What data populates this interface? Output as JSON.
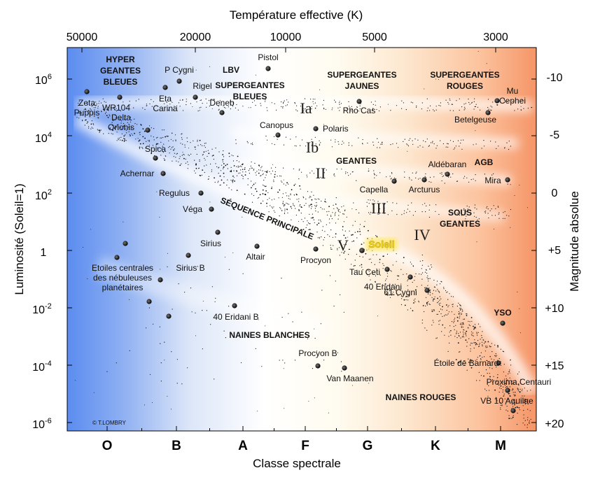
{
  "chart_data": {
    "type": "scatter",
    "top_title": "Température effective (K)",
    "xlabel": "Classe spectrale",
    "ylabel": "Luminosité (Soleil=1)",
    "ylabel_right": "Magnitude absolue",
    "temperature_ticks": [
      "50000",
      "20000",
      "10000",
      "5000",
      "3000"
    ],
    "spectral_classes": [
      "O",
      "B",
      "A",
      "F",
      "G",
      "K",
      "M"
    ],
    "luminosity_ticks": [
      "10^6",
      "10^4",
      "10^2",
      "1",
      "10^-2",
      "10^-4",
      "10^-6"
    ],
    "luminosity_range_log10": [
      -6.3,
      7.1
    ],
    "magnitude_ticks": [
      "-10",
      "-5",
      "0",
      "+5",
      "+10",
      "+15",
      "+20"
    ],
    "copyright": "© T.LOMBRY",
    "stars": [
      {
        "name": "Pistol",
        "cls": "A7",
        "logL": 6.4
      },
      {
        "name": "P Cygni",
        "cls": "B2",
        "logL": 5.9
      },
      {
        "name": "Rigel",
        "cls": "B8",
        "logL": 5.4
      },
      {
        "name": "Eta Carina",
        "cls": "B0.5",
        "logL": 5.7
      },
      {
        "name": "WR104",
        "cls": "O6",
        "logL": 5.4
      },
      {
        "name": "Zeta Puppis",
        "cls": "O0",
        "logL": 5.6
      },
      {
        "name": "Deneb",
        "cls": "A2",
        "logL": 4.8
      },
      {
        "name": "Rho Cas",
        "cls": "F9",
        "logL": 5.3
      },
      {
        "name": "Betelgeuse",
        "cls": "M1",
        "logL": 4.9
      },
      {
        "name": "Mu Cephei",
        "cls": "M2",
        "logL": 5.3
      },
      {
        "name": "Canopus",
        "cls": "A9",
        "logL": 4.0
      },
      {
        "name": "Polaris",
        "cls": "F3",
        "logL": 4.2
      },
      {
        "name": "Delta Orionis",
        "cls": "B1",
        "logL": 4.2
      },
      {
        "name": "Spica",
        "cls": "B3",
        "logL": 3.3
      },
      {
        "name": "Achernar",
        "cls": "B5",
        "logL": 2.7
      },
      {
        "name": "Aldébaran",
        "cls": "K4",
        "logL": 2.7
      },
      {
        "name": "Arcturus",
        "cls": "K3",
        "logL": 2.5
      },
      {
        "name": "Capella",
        "cls": "G6",
        "logL": 2.4
      },
      {
        "name": "Mira",
        "cls": "M3",
        "logL": 2.4
      },
      {
        "name": "Regulus",
        "cls": "B9",
        "logL": 2.1
      },
      {
        "name": "Véga",
        "cls": "A0",
        "logL": 1.6
      },
      {
        "name": "Sirius",
        "cls": "A2",
        "logL": 0.7
      },
      {
        "name": "Altair",
        "cls": "A8",
        "logL": 0.2
      },
      {
        "name": "Procyon",
        "cls": "F5",
        "logL": 0.1
      },
      {
        "name": "Soleil",
        "cls": "G2",
        "logL": 0.0
      },
      {
        "name": "Tau Ceti",
        "cls": "G9",
        "logL": -0.6
      },
      {
        "name": "40 Eridani",
        "cls": "K1",
        "logL": -0.9
      },
      {
        "name": "61 Cygni",
        "cls": "K6",
        "logL": -1.4
      },
      {
        "name": "Sirius B",
        "cls": "B6",
        "logL": -0.2
      },
      {
        "name": "Etoiles centrales des nébuleuses planétaires",
        "cls": "O6",
        "logL": 0.3
      },
      {
        "name": "40 Eridani B",
        "cls": "A1",
        "logL": -1.9
      },
      {
        "name": "YSO",
        "cls": "M2",
        "logL": -2.5
      },
      {
        "name": "Procyon B",
        "cls": "F5",
        "logL": -4.0
      },
      {
        "name": "Van Maanen",
        "cls": "F9",
        "logL": -4.1
      },
      {
        "name": "Étoile de Barnard",
        "cls": "M3",
        "logL": -3.9
      },
      {
        "name": "Proxima Centauri",
        "cls": "M5",
        "logL": -4.9
      },
      {
        "name": "VB 10 Aquilae",
        "cls": "M8",
        "logL": -5.7
      }
    ],
    "regions": [
      "HYPER GEANTES BLEUES",
      "LBV",
      "SUPERGEANTES BLEUES",
      "SUPERGEANTES JAUNES",
      "SUPERGEANTES ROUGES",
      "GEANTES",
      "AGB",
      "SOUS GEANTES",
      "SÉQUENCE PRINCIPALE",
      "NAINES BLANCHES",
      "NAINES ROUGES",
      "YSO"
    ],
    "luminosity_classes": [
      "Ia",
      "Ib",
      "II",
      "III",
      "IV",
      "V"
    ]
  }
}
